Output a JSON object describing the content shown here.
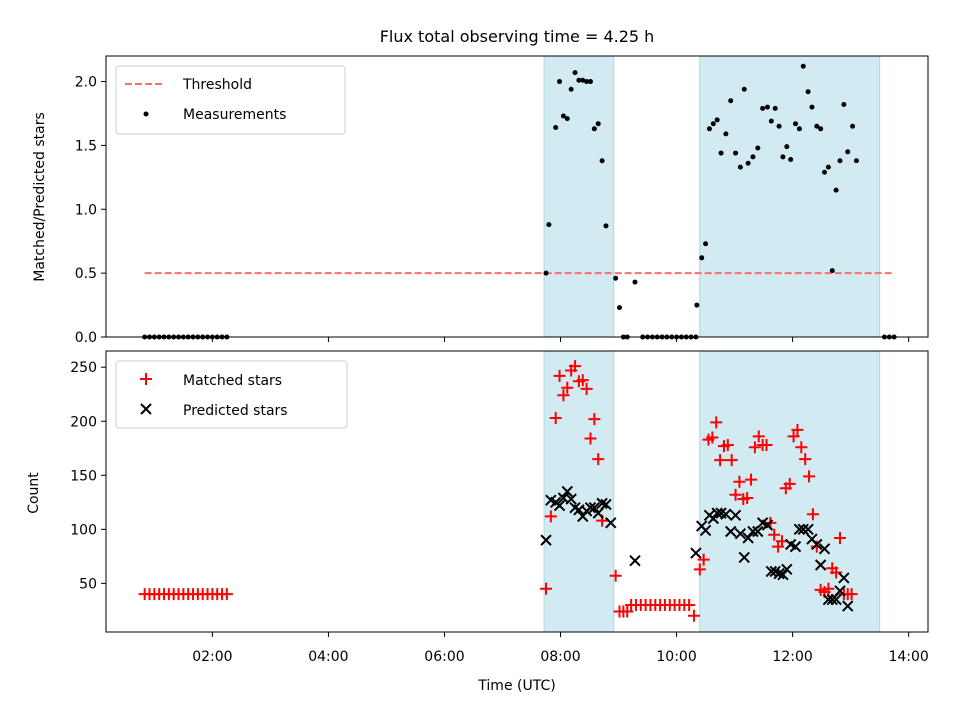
{
  "figure": {
    "title": "Flux total observing time = 4.25 h",
    "xlabel": "Time (UTC)",
    "x_tick_labels": [
      "02:00",
      "04:00",
      "06:00",
      "08:00",
      "10:00",
      "12:00",
      "14:00"
    ]
  },
  "colors": {
    "shade": "#add8e6",
    "threshold": "#ff6f6f",
    "measurements": "#000000",
    "matched": "#ff0000",
    "predicted": "#000000"
  },
  "chart_data": [
    {
      "type": "scatter",
      "ylabel": "Matched/Predicted stars",
      "xlim": [
        "00:10",
        "14:20"
      ],
      "ylim": [
        0,
        2.2
      ],
      "y_ticks": [
        "0.0",
        "0.5",
        "1.0",
        "1.5",
        "2.0"
      ],
      "legend": "top-left",
      "shaded_intervals": [
        [
          "07:43",
          "08:55"
        ],
        [
          "10:24",
          "13:30"
        ]
      ],
      "threshold": {
        "name": "Threshold",
        "value": 0.5,
        "x": [
          "00:50",
          "13:45"
        ]
      },
      "measurements": {
        "name": "Measurements",
        "points": [
          [
            "00:50",
            0
          ],
          [
            "00:55",
            0
          ],
          [
            "01:00",
            0
          ],
          [
            "01:05",
            0
          ],
          [
            "01:10",
            0
          ],
          [
            "01:15",
            0
          ],
          [
            "01:20",
            0
          ],
          [
            "01:25",
            0
          ],
          [
            "01:30",
            0
          ],
          [
            "01:35",
            0
          ],
          [
            "01:40",
            0
          ],
          [
            "01:45",
            0
          ],
          [
            "01:50",
            0
          ],
          [
            "01:55",
            0
          ],
          [
            "02:00",
            0
          ],
          [
            "02:05",
            0
          ],
          [
            "02:10",
            0
          ],
          [
            "02:15",
            0
          ],
          [
            "07:45",
            0.5
          ],
          [
            "07:48",
            0.88
          ],
          [
            "07:55",
            1.64
          ],
          [
            "07:59",
            2.0
          ],
          [
            "08:03",
            1.73
          ],
          [
            "08:07",
            1.71
          ],
          [
            "08:11",
            1.94
          ],
          [
            "08:15",
            2.07
          ],
          [
            "08:19",
            2.01
          ],
          [
            "08:23",
            2.01
          ],
          [
            "08:27",
            2.0
          ],
          [
            "08:31",
            2.0
          ],
          [
            "08:35",
            1.63
          ],
          [
            "08:39",
            1.67
          ],
          [
            "08:43",
            1.38
          ],
          [
            "08:47",
            0.87
          ],
          [
            "08:57",
            0.46
          ],
          [
            "09:01",
            0.23
          ],
          [
            "09:05",
            0
          ],
          [
            "09:09",
            0
          ],
          [
            "09:17",
            0.43
          ],
          [
            "09:25",
            0
          ],
          [
            "09:30",
            0
          ],
          [
            "09:35",
            0
          ],
          [
            "09:40",
            0
          ],
          [
            "09:45",
            0
          ],
          [
            "09:50",
            0
          ],
          [
            "09:55",
            0
          ],
          [
            "10:00",
            0
          ],
          [
            "10:05",
            0
          ],
          [
            "10:10",
            0
          ],
          [
            "10:15",
            0
          ],
          [
            "10:20",
            0
          ],
          [
            "10:21",
            0.25
          ],
          [
            "10:26",
            0.62
          ],
          [
            "10:30",
            0.73
          ],
          [
            "10:34",
            1.63
          ],
          [
            "10:38",
            1.67
          ],
          [
            "10:42",
            1.7
          ],
          [
            "10:46",
            1.44
          ],
          [
            "10:51",
            1.59
          ],
          [
            "10:56",
            1.85
          ],
          [
            "11:01",
            1.44
          ],
          [
            "11:06",
            1.33
          ],
          [
            "11:10",
            1.94
          ],
          [
            "11:14",
            1.36
          ],
          [
            "11:19",
            1.41
          ],
          [
            "11:24",
            1.48
          ],
          [
            "11:29",
            1.79
          ],
          [
            "11:34",
            1.8
          ],
          [
            "11:38",
            1.69
          ],
          [
            "11:42",
            1.79
          ],
          [
            "11:46",
            1.65
          ],
          [
            "11:50",
            1.41
          ],
          [
            "11:54",
            1.49
          ],
          [
            "11:58",
            1.39
          ],
          [
            "12:03",
            1.67
          ],
          [
            "12:07",
            1.63
          ],
          [
            "12:11",
            2.12
          ],
          [
            "12:16",
            1.92
          ],
          [
            "12:20",
            1.8
          ],
          [
            "12:25",
            1.65
          ],
          [
            "12:29",
            1.63
          ],
          [
            "12:33",
            1.29
          ],
          [
            "12:37",
            1.33
          ],
          [
            "12:41",
            0.52
          ],
          [
            "12:45",
            1.15
          ],
          [
            "12:49",
            1.38
          ],
          [
            "12:53",
            1.82
          ],
          [
            "12:57",
            1.45
          ],
          [
            "13:02",
            1.65
          ],
          [
            "13:06",
            1.38
          ],
          [
            "13:35",
            0
          ],
          [
            "13:40",
            0
          ],
          [
            "13:45",
            0
          ]
        ]
      }
    },
    {
      "type": "scatter",
      "ylabel": "Count",
      "xlim": [
        "00:10",
        "14:20"
      ],
      "ylim": [
        5,
        265
      ],
      "y_ticks": [
        "50",
        "100",
        "150",
        "200",
        "250"
      ],
      "legend": "top-left",
      "shaded_intervals": [
        [
          "07:43",
          "08:55"
        ],
        [
          "10:24",
          "13:30"
        ]
      ],
      "series": [
        {
          "name": "Matched stars",
          "points": [
            [
              "00:50",
              40
            ],
            [
              "00:55",
              40
            ],
            [
              "01:00",
              40
            ],
            [
              "01:05",
              40
            ],
            [
              "01:10",
              40
            ],
            [
              "01:15",
              40
            ],
            [
              "01:20",
              40
            ],
            [
              "01:25",
              40
            ],
            [
              "01:30",
              40
            ],
            [
              "01:35",
              40
            ],
            [
              "01:40",
              40
            ],
            [
              "01:45",
              40
            ],
            [
              "01:50",
              40
            ],
            [
              "01:55",
              40
            ],
            [
              "02:00",
              40
            ],
            [
              "02:05",
              40
            ],
            [
              "02:10",
              40
            ],
            [
              "02:15",
              40
            ],
            [
              "07:45",
              45
            ],
            [
              "07:50",
              112
            ],
            [
              "07:55",
              203
            ],
            [
              "07:59",
              242
            ],
            [
              "08:03",
              224
            ],
            [
              "08:07",
              231
            ],
            [
              "08:11",
              247
            ],
            [
              "08:15",
              251
            ],
            [
              "08:19",
              237
            ],
            [
              "08:23",
              238
            ],
            [
              "08:27",
              230
            ],
            [
              "08:31",
              184
            ],
            [
              "08:35",
              202
            ],
            [
              "08:39",
              165
            ],
            [
              "08:43",
              108
            ],
            [
              "08:57",
              57
            ],
            [
              "09:01",
              24
            ],
            [
              "09:05",
              24
            ],
            [
              "09:09",
              24
            ],
            [
              "09:13",
              30
            ],
            [
              "09:18",
              30
            ],
            [
              "09:23",
              30
            ],
            [
              "09:28",
              30
            ],
            [
              "09:33",
              30
            ],
            [
              "09:38",
              30
            ],
            [
              "09:43",
              30
            ],
            [
              "09:48",
              30
            ],
            [
              "09:53",
              30
            ],
            [
              "09:58",
              30
            ],
            [
              "10:03",
              30
            ],
            [
              "10:08",
              30
            ],
            [
              "10:13",
              30
            ],
            [
              "10:18",
              20
            ],
            [
              "10:24",
              63
            ],
            [
              "10:28",
              72
            ],
            [
              "10:33",
              183
            ],
            [
              "10:37",
              185
            ],
            [
              "10:41",
              199
            ],
            [
              "10:45",
              164
            ],
            [
              "10:49",
              177
            ],
            [
              "10:53",
              178
            ],
            [
              "10:57",
              164
            ],
            [
              "11:01",
              132
            ],
            [
              "11:05",
              144
            ],
            [
              "11:09",
              128
            ],
            [
              "11:13",
              129
            ],
            [
              "11:17",
              146
            ],
            [
              "11:21",
              176
            ],
            [
              "11:25",
              186
            ],
            [
              "11:29",
              178
            ],
            [
              "11:33",
              178
            ],
            [
              "11:37",
              106
            ],
            [
              "11:41",
              95
            ],
            [
              "11:45",
              84
            ],
            [
              "11:49",
              89
            ],
            [
              "11:53",
              138
            ],
            [
              "11:57",
              142
            ],
            [
              "12:01",
              186
            ],
            [
              "12:05",
              192
            ],
            [
              "12:09",
              176
            ],
            [
              "12:13",
              165
            ],
            [
              "12:17",
              149
            ],
            [
              "12:21",
              114
            ],
            [
              "12:25",
              84
            ],
            [
              "12:29",
              44
            ],
            [
              "12:33",
              42
            ],
            [
              "12:37",
              45
            ],
            [
              "12:41",
              64
            ],
            [
              "12:45",
              60
            ],
            [
              "12:49",
              92
            ],
            [
              "12:53",
              40
            ],
            [
              "12:57",
              40
            ],
            [
              "13:01",
              40
            ]
          ]
        },
        {
          "name": "Predicted stars",
          "points": [
            [
              "07:45",
              90
            ],
            [
              "07:50",
              127
            ],
            [
              "07:55",
              125
            ],
            [
              "07:59",
              122
            ],
            [
              "08:03",
              129
            ],
            [
              "08:07",
              135
            ],
            [
              "08:11",
              128
            ],
            [
              "08:15",
              120
            ],
            [
              "08:19",
              118
            ],
            [
              "08:23",
              112
            ],
            [
              "08:27",
              117
            ],
            [
              "08:31",
              120
            ],
            [
              "08:35",
              120
            ],
            [
              "08:39",
              115
            ],
            [
              "08:43",
              124
            ],
            [
              "08:47",
              123
            ],
            [
              "08:52",
              106
            ],
            [
              "09:17",
              71
            ],
            [
              "10:20",
              78
            ],
            [
              "10:26",
              103
            ],
            [
              "10:30",
              99
            ],
            [
              "10:34",
              113
            ],
            [
              "10:38",
              110
            ],
            [
              "10:42",
              115
            ],
            [
              "10:46",
              115
            ],
            [
              "10:51",
              114
            ],
            [
              "10:56",
              98
            ],
            [
              "11:01",
              113
            ],
            [
              "11:06",
              96
            ],
            [
              "11:10",
              74
            ],
            [
              "11:14",
              92
            ],
            [
              "11:19",
              98
            ],
            [
              "11:24",
              98
            ],
            [
              "11:29",
              106
            ],
            [
              "11:34",
              104
            ],
            [
              "11:38",
              61
            ],
            [
              "11:42",
              61
            ],
            [
              "11:46",
              59
            ],
            [
              "11:50",
              58
            ],
            [
              "11:54",
              63
            ],
            [
              "11:58",
              86
            ],
            [
              "12:03",
              84
            ],
            [
              "12:07",
              100
            ],
            [
              "12:11",
              100
            ],
            [
              "12:16",
              100
            ],
            [
              "12:20",
              91
            ],
            [
              "12:25",
              86
            ],
            [
              "12:29",
              67
            ],
            [
              "12:33",
              82
            ],
            [
              "12:37",
              35
            ],
            [
              "12:41",
              35
            ],
            [
              "12:45",
              35
            ],
            [
              "12:49",
              43
            ],
            [
              "12:53",
              55
            ],
            [
              "12:57",
              29
            ]
          ]
        }
      ]
    }
  ]
}
